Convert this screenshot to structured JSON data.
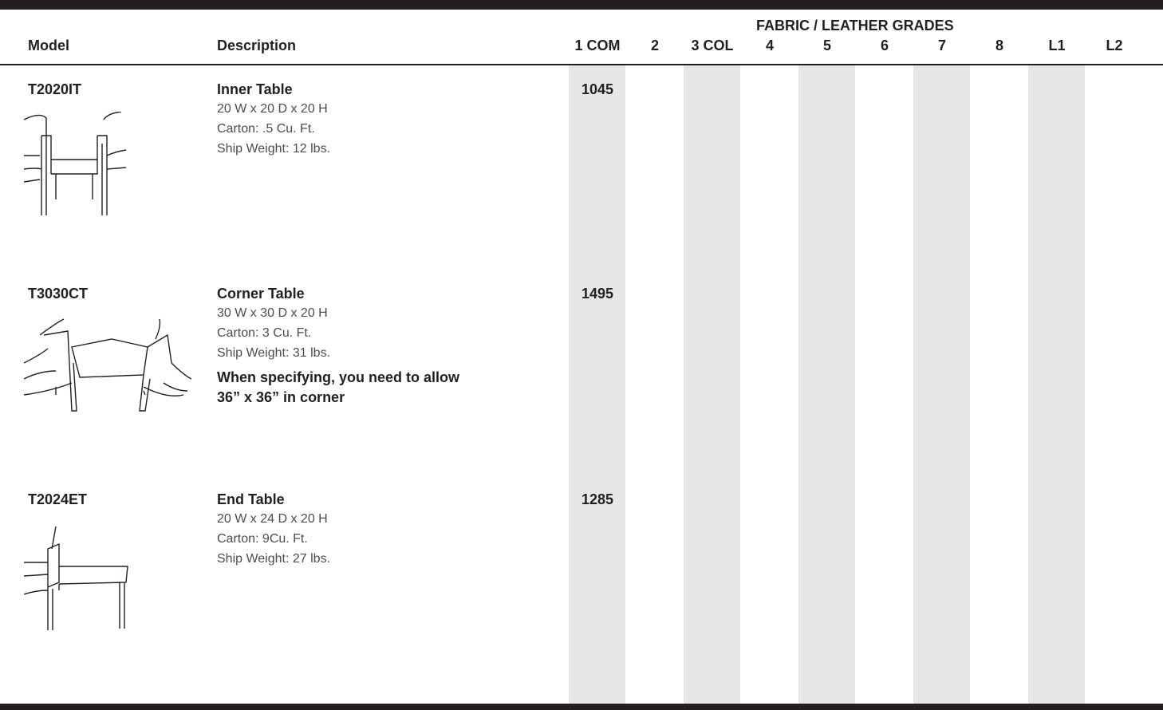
{
  "header": {
    "grades_title": "FABRIC / LEATHER GRADES",
    "columns": [
      "Model",
      "Description",
      "1 COM",
      "2",
      "3 COL",
      "4",
      "5",
      "6",
      "7",
      "8",
      "L1",
      "L2"
    ]
  },
  "rows": [
    {
      "model": "T2020IT",
      "title": "Inner Table",
      "lines": [
        "20 W x 20 D x 20 H",
        "Carton: .5 Cu. Ft.",
        "Ship Weight: 12 lbs."
      ],
      "price": 1045
    },
    {
      "model": "T3030CT",
      "title": "Corner Table",
      "lines": [
        "30 W x 30 D x 20 H",
        "Carton: 3 Cu. Ft.",
        "Ship Weight: 31 lbs."
      ],
      "note": [
        "When specifying, you need to allow",
        "36” x 36” in corner"
      ],
      "price": 1495
    },
    {
      "model": "T2024ET",
      "title": "End Table",
      "lines": [
        "20 W x 24 D x 20 H",
        "Carton: 9Cu. Ft.",
        "Ship Weight: 27 lbs."
      ],
      "price": 1285
    }
  ]
}
